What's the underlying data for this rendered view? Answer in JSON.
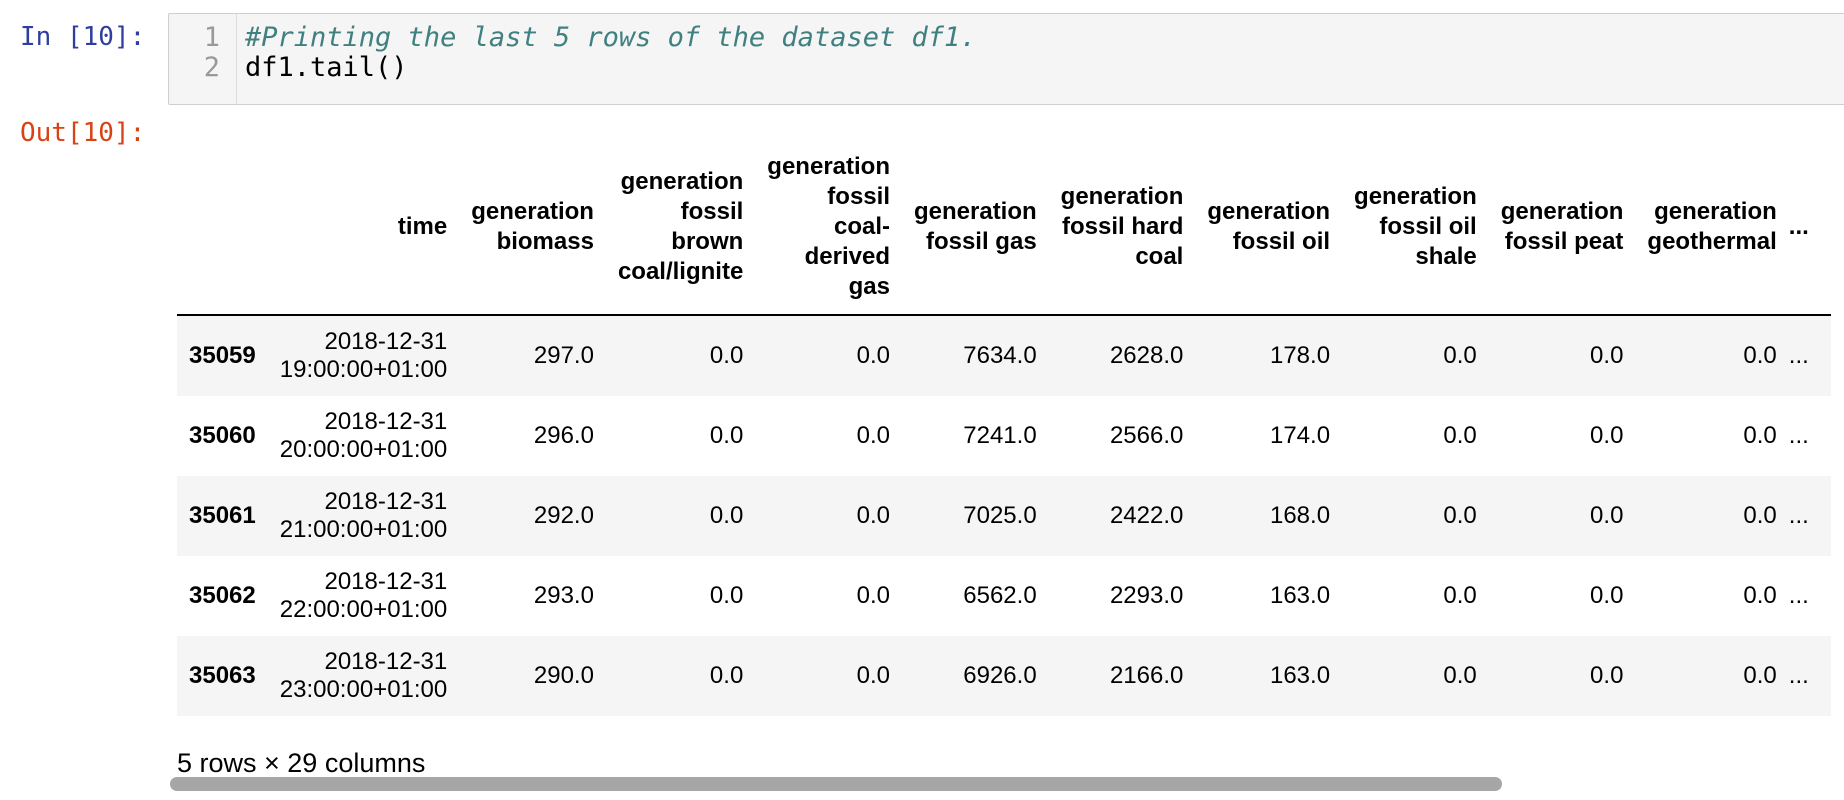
{
  "input_cell": {
    "prompt": "In [10]:",
    "lines": [
      {
        "num": "1",
        "text": "#Printing the last 5 rows of the dataset df1.",
        "kind": "comment"
      },
      {
        "num": "2",
        "text": "df1.tail()",
        "kind": "code"
      }
    ]
  },
  "output_cell": {
    "prompt": "Out[10]:",
    "columns": [
      "",
      "time",
      "generation biomass",
      "generation fossil brown coal/lignite",
      "generation fossil coal-derived gas",
      "generation fossil gas",
      "generation fossil hard coal",
      "generation fossil oil",
      "generation fossil oil shale",
      "generation fossil peat",
      "generation geothermal",
      "..."
    ],
    "rows": [
      {
        "index": "35059",
        "time": "2018-12-31 19:00:00+01:00",
        "values": [
          "297.0",
          "0.0",
          "0.0",
          "7634.0",
          "2628.0",
          "178.0",
          "0.0",
          "0.0",
          "0.0",
          "..."
        ]
      },
      {
        "index": "35060",
        "time": "2018-12-31 20:00:00+01:00",
        "values": [
          "296.0",
          "0.0",
          "0.0",
          "7241.0",
          "2566.0",
          "174.0",
          "0.0",
          "0.0",
          "0.0",
          "..."
        ]
      },
      {
        "index": "35061",
        "time": "2018-12-31 21:00:00+01:00",
        "values": [
          "292.0",
          "0.0",
          "0.0",
          "7025.0",
          "2422.0",
          "168.0",
          "0.0",
          "0.0",
          "0.0",
          "..."
        ]
      },
      {
        "index": "35062",
        "time": "2018-12-31 22:00:00+01:00",
        "values": [
          "293.0",
          "0.0",
          "0.0",
          "6562.0",
          "2293.0",
          "163.0",
          "0.0",
          "0.0",
          "0.0",
          "..."
        ]
      },
      {
        "index": "35063",
        "time": "2018-12-31 23:00:00+01:00",
        "values": [
          "290.0",
          "0.0",
          "0.0",
          "6926.0",
          "2166.0",
          "163.0",
          "0.0",
          "0.0",
          "0.0",
          "..."
        ]
      }
    ],
    "shape_note": "5 rows × 29 columns"
  },
  "colors": {
    "in_prompt": "#303f9f",
    "out_prompt": "#d84315",
    "comment": "#408080",
    "stripe": "#f5f5f5"
  }
}
